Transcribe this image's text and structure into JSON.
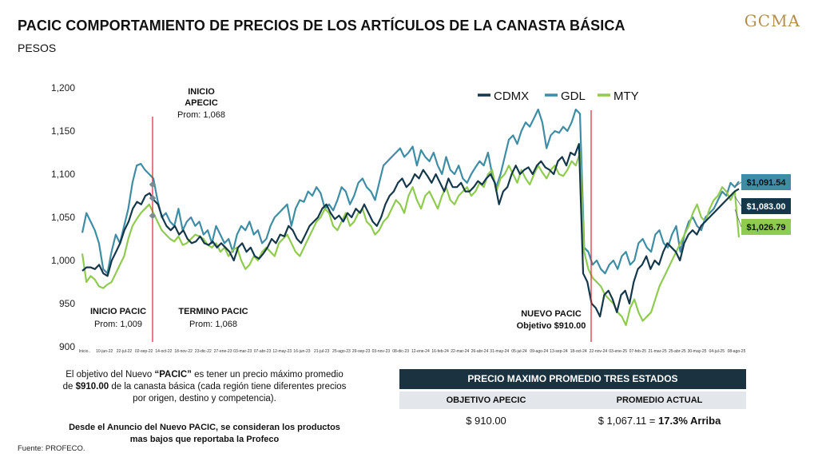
{
  "header": {
    "title": "PACIC COMPORTAMIENTO DE PRECIOS DE LOS ARTÍCULOS DE LA CANASTA BÁSICA",
    "subtitle": "PESOS",
    "logo": "GCMA"
  },
  "colors": {
    "cdmx": "#14384a",
    "gdl": "#3f8da4",
    "mty": "#8fcb4f",
    "marker": "#d9262c"
  },
  "chart_data": {
    "type": "line",
    "ylim": [
      900,
      1200
    ],
    "yticks": [
      900,
      950,
      1000,
      1050,
      1100,
      1150,
      1200
    ],
    "ytick_labels": [
      "900",
      "950",
      "1,000",
      "1,050",
      "1,100",
      "1,150",
      "1,200"
    ],
    "xtick_labels": [
      "Inicio..",
      "10-jun-22",
      "22-jul-22",
      "02-sep-22",
      "14-oct-22",
      "18-nov-22",
      "23-dic-22",
      "27-ene-23",
      "03-mar-23",
      "07-abr-23",
      "12-may-23",
      "16-jun-23",
      "21-jul-23",
      "25-ago-23",
      "29-sep-23",
      "03-nov-23",
      "08-dic-23",
      "12-ene-24",
      "16-feb-24",
      "22-mar-24",
      "26-abr-24",
      "31-may-24",
      "05-jul-24",
      "09-ago-24",
      "13-sep-24",
      "18-oct-24",
      "22-nov-24",
      "03-ene-25",
      "07-feb-25",
      "21-mar-25",
      "25-abr-25",
      "30-may-25",
      "04-jul-25",
      "08-ago-25"
    ],
    "series": [
      {
        "name": "CDMX",
        "values": [
          988,
          992,
          992,
          990,
          995,
          985,
          982,
          1000,
          1010,
          1020,
          1035,
          1045,
          1060,
          1068,
          1065,
          1075,
          1078,
          1070,
          1065,
          1050,
          1040,
          1035,
          1040,
          1030,
          1035,
          1025,
          1020,
          1022,
          1028,
          1020,
          1018,
          1022,
          1015,
          1020,
          1015,
          1010,
          1000,
          1015,
          1020,
          1010,
          1015,
          1005,
          1002,
          1008,
          1015,
          1025,
          1020,
          1030,
          1028,
          1040,
          1035,
          1025,
          1020,
          1030,
          1040,
          1045,
          1050,
          1060,
          1065,
          1055,
          1048,
          1052,
          1045,
          1055,
          1050,
          1060,
          1055,
          1065,
          1055,
          1045,
          1040,
          1050,
          1065,
          1075,
          1080,
          1090,
          1095,
          1085,
          1090,
          1100,
          1095,
          1105,
          1098,
          1090,
          1100,
          1090,
          1080,
          1095,
          1085,
          1085,
          1090,
          1080,
          1080,
          1085,
          1092,
          1088,
          1095,
          1100,
          1090,
          1065,
          1080,
          1085,
          1100,
          1110,
          1100,
          1105,
          1108,
          1100,
          1110,
          1115,
          1108,
          1105,
          1100,
          1115,
          1120,
          1110,
          1125,
          1122,
          1135,
          985,
          975,
          950,
          945,
          935,
          960,
          965,
          955,
          940,
          960,
          965,
          950,
          975,
          990,
          995,
          1005,
          990,
          1000,
          995,
          1010,
          1020,
          1015,
          1010,
          1000,
          1020,
          1030,
          1035,
          1030,
          1040,
          1045,
          1050,
          1055,
          1060,
          1065,
          1070,
          1075,
          1080,
          1083
        ]
      },
      {
        "name": "GDL",
        "values": [
          1032,
          1055,
          1045,
          1035,
          1020,
          990,
          985,
          1010,
          1030,
          1020,
          1040,
          1060,
          1090,
          1110,
          1112,
          1105,
          1100,
          1095,
          1070,
          1050,
          1055,
          1045,
          1040,
          1060,
          1035,
          1045,
          1050,
          1040,
          1045,
          1030,
          1035,
          1020,
          1040,
          1030,
          1020,
          1025,
          1010,
          1030,
          1040,
          1035,
          1045,
          1030,
          1035,
          1020,
          1025,
          1040,
          1050,
          1055,
          1060,
          1065,
          1040,
          1060,
          1070,
          1068,
          1080,
          1075,
          1085,
          1078,
          1060,
          1065,
          1058,
          1070,
          1085,
          1080,
          1065,
          1075,
          1090,
          1095,
          1085,
          1080,
          1070,
          1090,
          1110,
          1115,
          1120,
          1125,
          1130,
          1120,
          1125,
          1132,
          1110,
          1128,
          1120,
          1115,
          1125,
          1110,
          1100,
          1120,
          1105,
          1100,
          1110,
          1095,
          1090,
          1100,
          1108,
          1115,
          1110,
          1125,
          1100,
          1085,
          1100,
          1120,
          1140,
          1145,
          1135,
          1150,
          1160,
          1155,
          1165,
          1175,
          1160,
          1130,
          1145,
          1150,
          1148,
          1155,
          1150,
          1160,
          1175,
          1170,
          1015,
          1010,
          995,
          1000,
          990,
          985,
          995,
          1000,
          990,
          1005,
          1010,
          995,
          1000,
          1020,
          1025,
          1015,
          1010,
          1030,
          1035,
          1020,
          1015,
          1030,
          1040,
          1010,
          1030,
          1045,
          1050,
          1040,
          1035,
          1050,
          1055,
          1060,
          1070,
          1080,
          1075,
          1090,
          1085,
          1091.54
        ]
      },
      {
        "name": "MTY",
        "values": [
          1008,
          975,
          982,
          978,
          970,
          968,
          972,
          975,
          985,
          995,
          1005,
          1025,
          1040,
          1048,
          1055,
          1060,
          1065,
          1055,
          1045,
          1035,
          1030,
          1025,
          1022,
          1028,
          1018,
          1020,
          1025,
          1030,
          1028,
          1025,
          1018,
          1015,
          1020,
          1010,
          1015,
          1005,
          1012,
          1015,
          1000,
          990,
          995,
          1005,
          1000,
          1010,
          1015,
          1010,
          1005,
          1020,
          1025,
          1030,
          1020,
          1010,
          1005,
          1015,
          1025,
          1035,
          1045,
          1050,
          1060,
          1055,
          1040,
          1035,
          1045,
          1055,
          1040,
          1045,
          1055,
          1060,
          1045,
          1040,
          1030,
          1035,
          1045,
          1050,
          1060,
          1070,
          1065,
          1055,
          1075,
          1085,
          1070,
          1060,
          1075,
          1080,
          1070,
          1060,
          1075,
          1085,
          1070,
          1065,
          1075,
          1080,
          1085,
          1075,
          1080,
          1090,
          1085,
          1100,
          1105,
          1080,
          1095,
          1100,
          1110,
          1100,
          1090,
          1105,
          1095,
          1088,
          1100,
          1110,
          1102,
          1095,
          1105,
          1110,
          1100,
          1098,
          1105,
          1115,
          1110,
          1125,
          1010,
          990,
          980,
          975,
          970,
          960,
          955,
          950,
          940,
          935,
          925,
          945,
          955,
          940,
          930,
          935,
          940,
          955,
          970,
          980,
          990,
          1000,
          1010,
          1020,
          1030,
          1040,
          1055,
          1065,
          1050,
          1045,
          1060,
          1070,
          1075,
          1085,
          1080,
          1070,
          1080,
          1026.79
        ]
      }
    ],
    "legend_position": "top-right",
    "end_labels": {
      "gdl": "$1,091.54",
      "cdmx": "$1,083.00",
      "mty": "$1,026.79"
    },
    "annotations": {
      "inicio_pacic": {
        "label": "INICIO PACIC",
        "value": "Prom: 1,009"
      },
      "inicio_apecic": {
        "label_1": "INICIO",
        "label_2": "APECIC",
        "value": "Prom: 1,068"
      },
      "termino_pacic": {
        "label": "TERMINO PACIC",
        "value": "Prom: 1,068"
      },
      "nuevo_pacic": {
        "label": "NUEVO PACIC",
        "value": "Objetivo $910.00"
      }
    }
  },
  "note": {
    "line1_pre": "El objetivo del Nuevo ",
    "line1_bold": "“PACIC”",
    "line1_post": " es tener un precio máximo promedio",
    "line2_pre": "de ",
    "line2_bold": "$910.00",
    "line2_post": " de la canasta básica (cada región tiene diferentes precios",
    "line3": "por origen, destino y competencia).",
    "bold_1": "Desde el Anuncio del Nuevo PACIC, se consideran los productos",
    "bold_2": "mas bajos que reportaba la Profeco"
  },
  "source": "Fuente: PROFECO.",
  "table": {
    "title": "PRECIO MAXIMO PROMEDIO TRES ESTADOS",
    "col1_header": "OBJETIVO APECIC",
    "col2_header": "PROMEDIO ACTUAL",
    "col1_value": "$ 910.00",
    "col2_value_pre": "$ 1,067.11  =",
    "col2_value_bold": "17.3% Arriba"
  }
}
